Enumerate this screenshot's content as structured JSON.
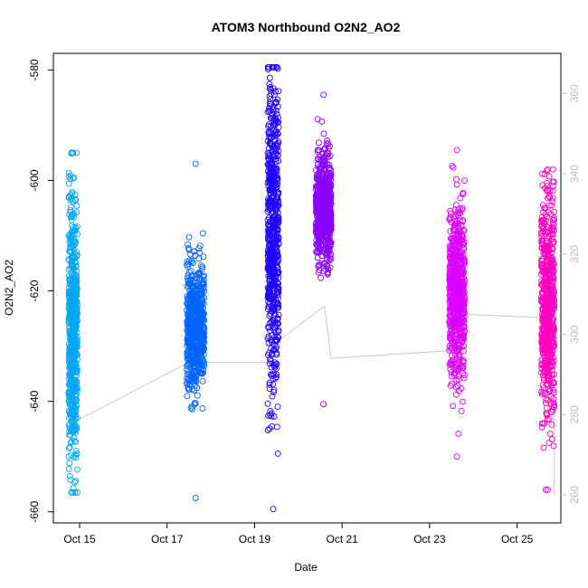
{
  "chart_data": {
    "type": "scatter",
    "title": "ATOM3 Northbound O2N2_AO2",
    "xlabel": "Date",
    "ylabel": "O2N2_AO2",
    "x_tick_labels": [
      "Oct 15",
      "Oct 17",
      "Oct 19",
      "Oct 21",
      "Oct 23",
      "Oct 25"
    ],
    "x_tick_days": [
      15,
      17,
      19,
      21,
      23,
      25
    ],
    "xlim_days": [
      14.4,
      26.0
    ],
    "ylim": [
      -662,
      -577
    ],
    "yticks": [
      -660,
      -640,
      -620,
      -600,
      -580
    ],
    "right_axis": {
      "label": "",
      "color": "#bdbdbd",
      "ylim": [
        253,
        370
      ],
      "ticks": [
        260,
        280,
        300,
        320,
        340,
        360
      ]
    },
    "series": [
      {
        "color": "#00a6f2",
        "x_range_days": [
          14.75,
          14.95
        ],
        "y_center": -627,
        "y_spread": 12,
        "y_min": -656.5,
        "y_max": -595
      },
      {
        "color": "#0064ff",
        "x_range_days": [
          17.45,
          17.85
        ],
        "y_center": -627,
        "y_spread": 6,
        "y_min": -657.5,
        "y_max": -597
      },
      {
        "color": "#2200ff",
        "x_range_days": [
          19.3,
          19.55
        ],
        "y_center": -608,
        "y_spread": 14,
        "y_min": -659.5,
        "y_max": -579.5
      },
      {
        "color": "#8a00ff",
        "x_range_days": [
          20.4,
          20.75
        ],
        "y_center": -605,
        "y_spread": 5,
        "y_min": -640.5,
        "y_max": -584.5
      },
      {
        "color": "#dd00ff",
        "x_range_days": [
          23.45,
          23.8
        ],
        "y_center": -621,
        "y_spread": 8,
        "y_min": -650,
        "y_max": -594.5
      },
      {
        "color": "#ff00c0",
        "x_range_days": [
          25.55,
          25.85
        ],
        "y_center": -623,
        "y_spread": 10,
        "y_min": -656,
        "y_max": -598
      }
    ],
    "overlay_line": {
      "color": "#c8c8c8",
      "points": [
        [
          14.85,
          278
        ],
        [
          17.5,
          293
        ],
        [
          19.3,
          293
        ],
        [
          19.5,
          298
        ],
        [
          20.6,
          307
        ],
        [
          20.75,
          294
        ],
        [
          23.55,
          296
        ],
        [
          23.8,
          305
        ],
        [
          25.85,
          304
        ],
        [
          25.85,
          260
        ]
      ]
    },
    "grid": false,
    "legend": "none"
  }
}
